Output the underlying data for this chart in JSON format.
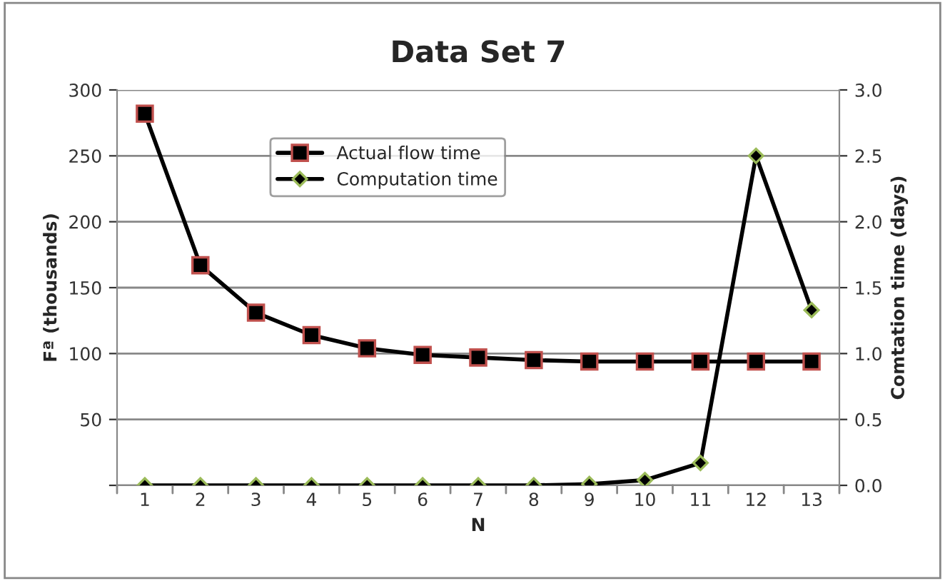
{
  "chart_data": {
    "type": "line",
    "title": "Data Set 7",
    "xlabel": "N",
    "ylabel": "Fª (thousands)",
    "y2label": "Comtation time (days)",
    "categories": [
      "1",
      "2",
      "3",
      "4",
      "5",
      "6",
      "7",
      "8",
      "9",
      "10",
      "11",
      "12",
      "13"
    ],
    "series": [
      {
        "name": "Actual flow time",
        "color": "#000000",
        "marker": "square",
        "values": [
          282,
          167,
          131,
          114,
          104,
          99,
          97,
          95,
          94,
          94,
          94,
          94,
          94
        ]
      },
      {
        "name": "Computation time",
        "color": "#000000",
        "marker": "diamond",
        "axis": "y2",
        "values": [
          0,
          0,
          0,
          0,
          0,
          0,
          0,
          0,
          0.01,
          0.04,
          0.17,
          2.5,
          1.33
        ]
      }
    ],
    "ylim": [
      0,
      300
    ],
    "yticks": [
      {
        "value": 0,
        "label": null
      },
      50,
      100,
      150,
      200,
      250,
      300
    ],
    "y2lim": [
      0,
      3.0
    ],
    "y2ticks": [
      {
        "value": 0,
        "label": "0.0"
      },
      0.5,
      {
        "value": 1,
        "label": "1.0"
      },
      1.5,
      {
        "value": 2,
        "label": "2.0"
      },
      2.5,
      {
        "value": 3,
        "label": "3.0"
      }
    ],
    "grid": "y",
    "legend": "top left",
    "line_style": "solid"
  }
}
